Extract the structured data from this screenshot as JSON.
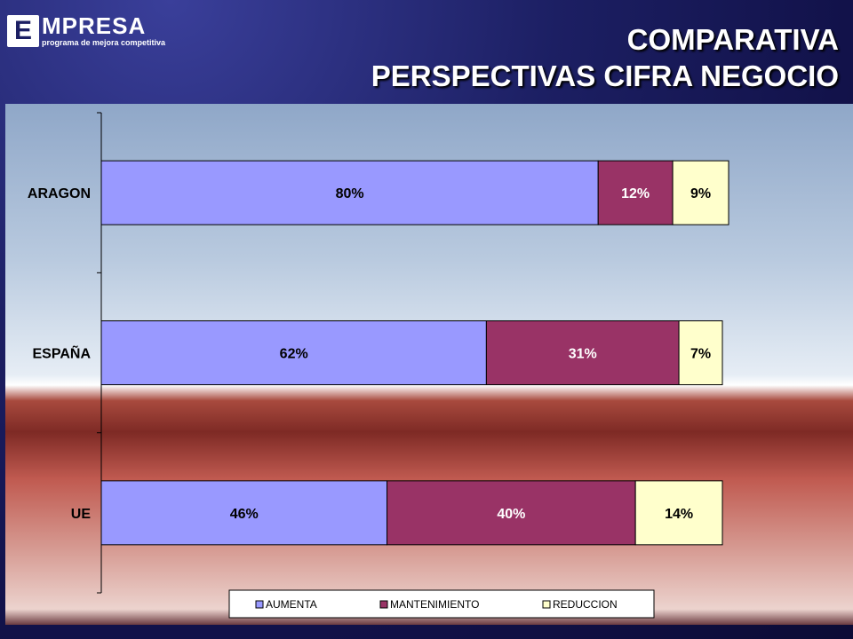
{
  "header": {
    "logo_letter": "E",
    "logo_word": "MPRESA",
    "logo_sub": "programa de mejora competitiva",
    "title_line1": "COMPARATIVA",
    "title_line2": "PERSPECTIVAS CIFRA NEGOCIO"
  },
  "chart_data": {
    "type": "bar",
    "orientation": "horizontal",
    "stacked": true,
    "categories": [
      "ARAGON",
      "ESPAÑA",
      "UE"
    ],
    "series": [
      {
        "name": "AUMENTA",
        "values": [
          80,
          62,
          46
        ],
        "labels": [
          "80%",
          "62%",
          "46%"
        ],
        "color": "#9999ff"
      },
      {
        "name": "MANTENIMIENTO",
        "values": [
          12,
          31,
          40
        ],
        "labels": [
          "12%",
          "31%",
          "40%"
        ],
        "color": "#993366"
      },
      {
        "name": "REDUCCION",
        "values": [
          9,
          7,
          14
        ],
        "labels": [
          "9%",
          "7%",
          "14%"
        ],
        "color": "#ffffcc"
      }
    ],
    "xlim": [
      0,
      101
    ],
    "legend": "bottom",
    "grid": false
  }
}
